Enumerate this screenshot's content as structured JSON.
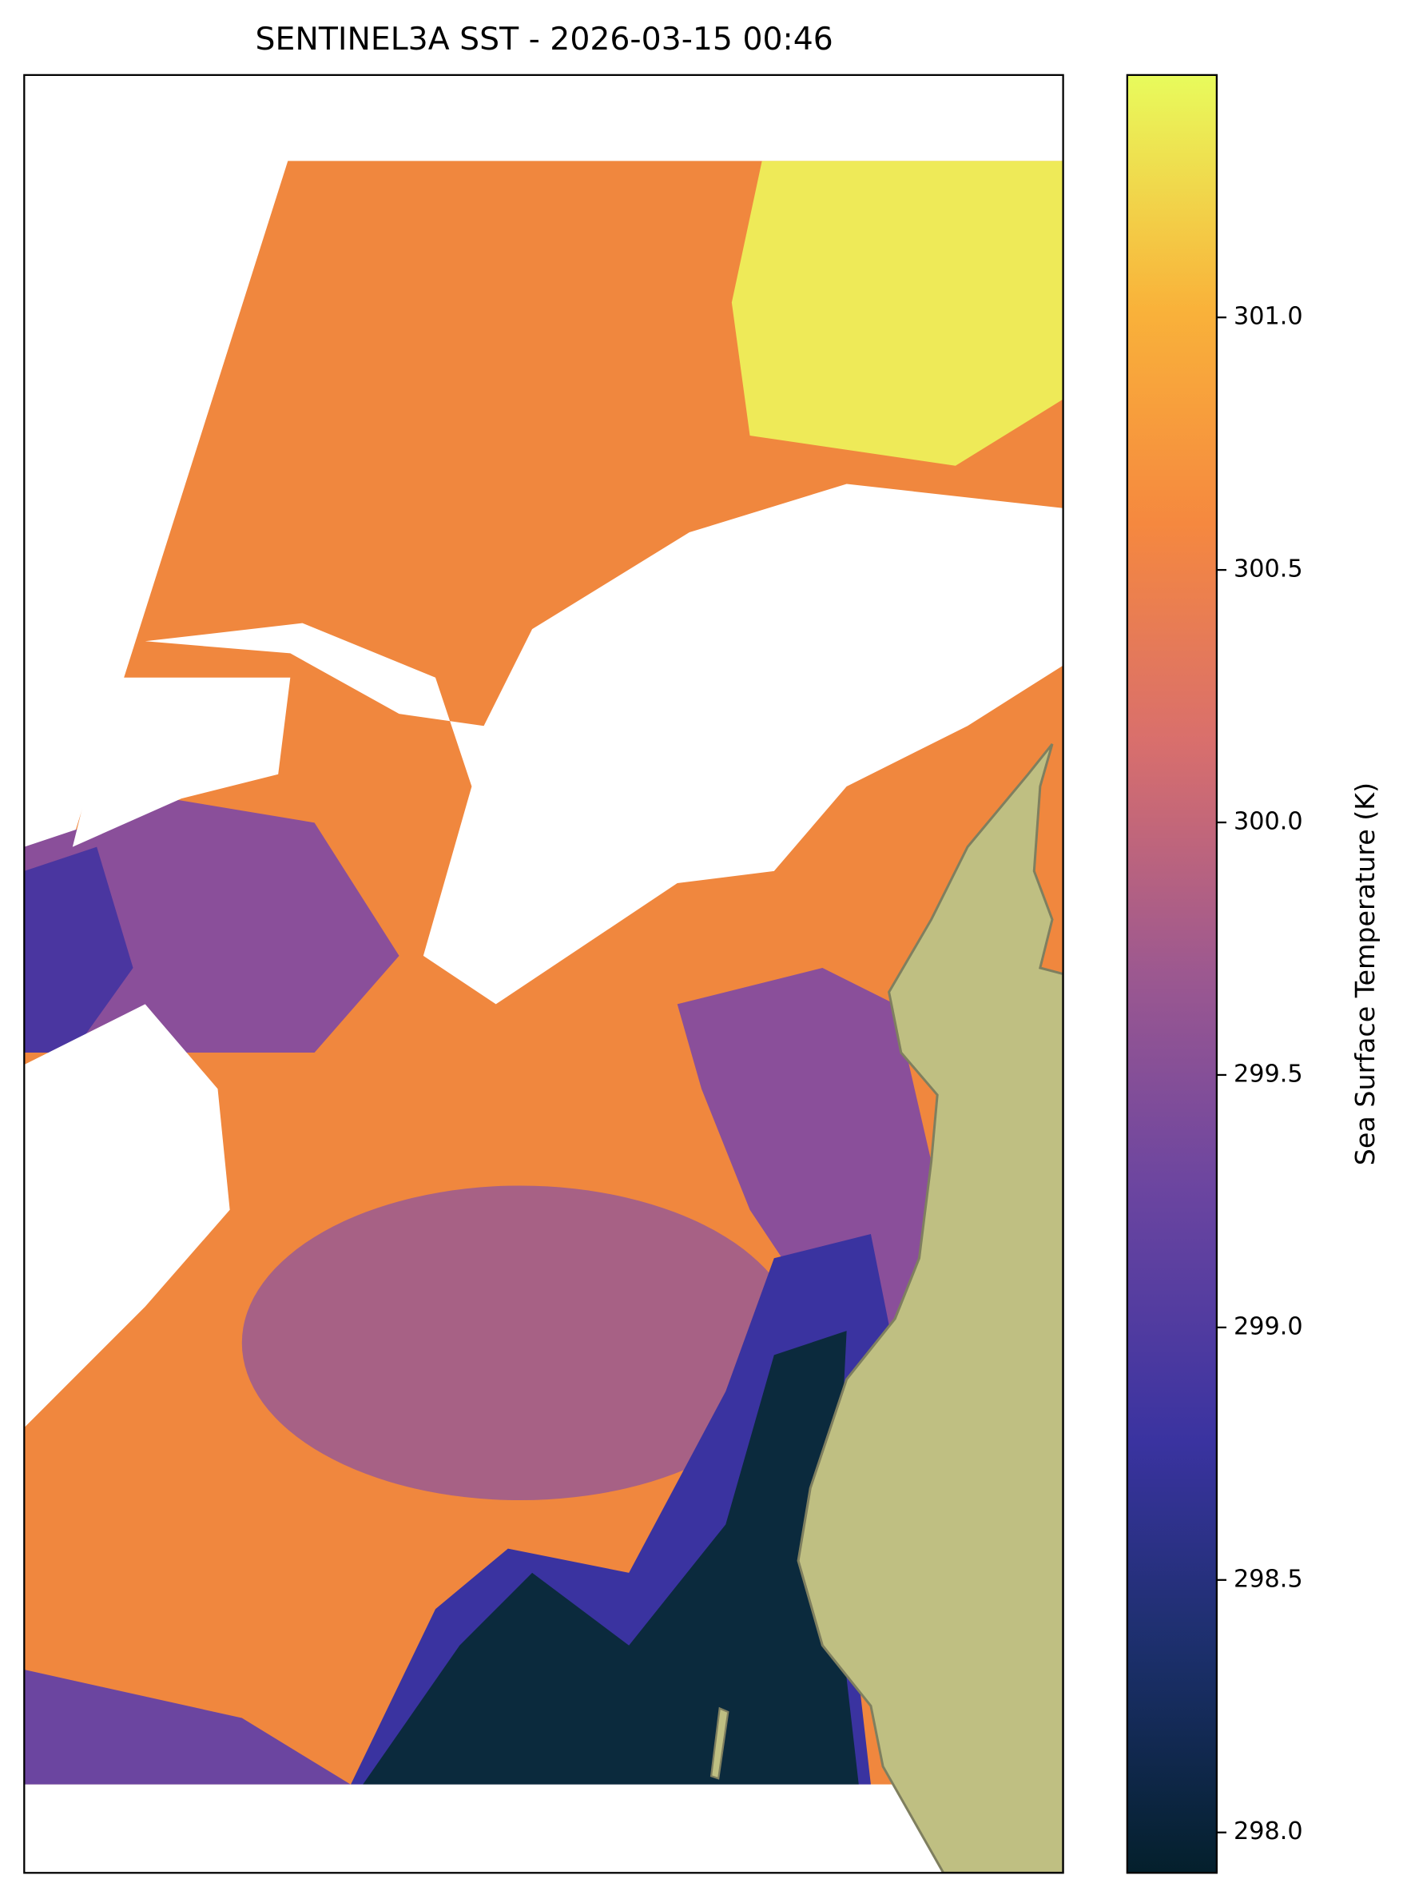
{
  "chart_data": {
    "type": "map",
    "title": "SENTINEL3A SST - 2026-03-15 00:46",
    "colorbar_label": "Sea Surface Temperature (K)",
    "clim": [
      297.92,
      301.48
    ],
    "cticks": [
      {
        "value": 298,
        "label": "298.0"
      },
      {
        "value": 298.5,
        "label": "298.5"
      },
      {
        "value": 299,
        "label": "299.0"
      },
      {
        "value": 299.5,
        "label": "299.5"
      },
      {
        "value": 300,
        "label": "300.0"
      },
      {
        "value": 300.5,
        "label": "300.5"
      },
      {
        "value": 301,
        "label": "301.0"
      }
    ]
  }
}
